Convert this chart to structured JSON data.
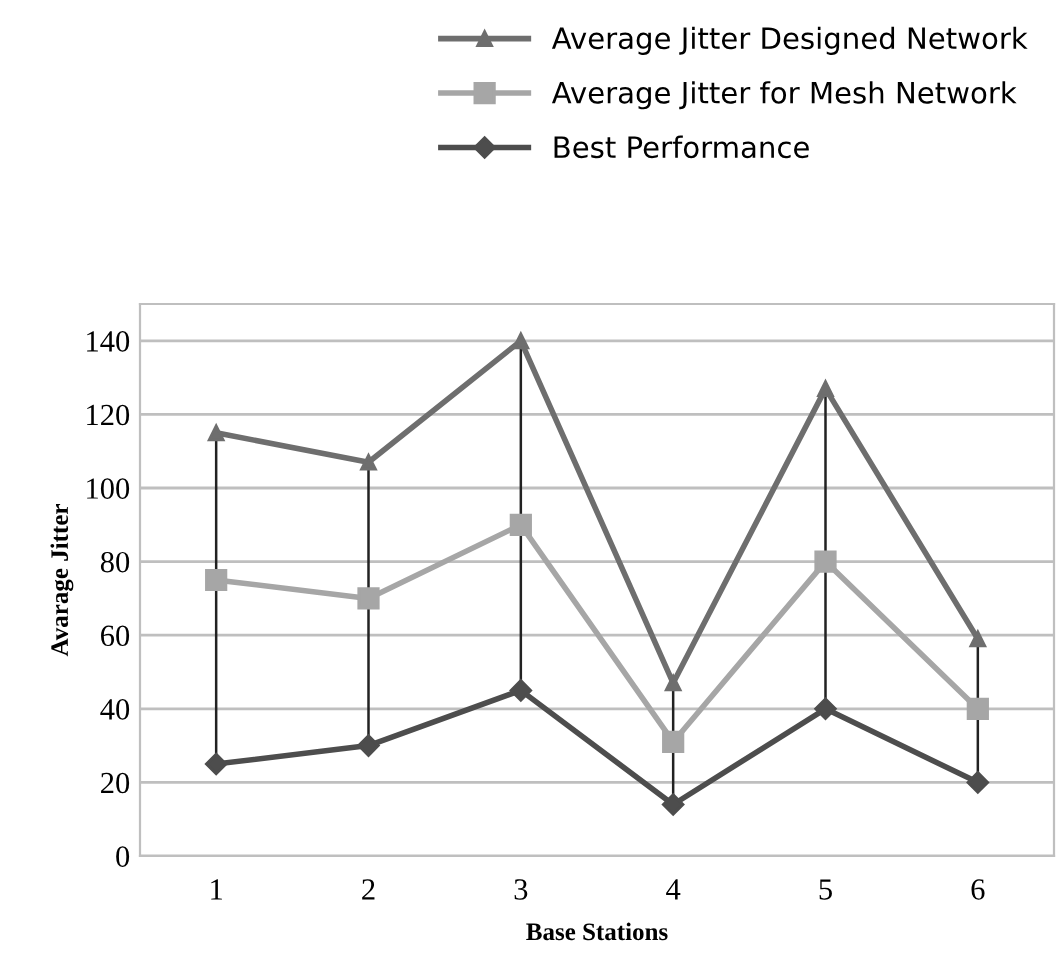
{
  "chart_data": {
    "type": "line",
    "xlabel": "Base Stations",
    "ylabel": "Avarage Jitter",
    "categories": [
      "1",
      "2",
      "3",
      "4",
      "5",
      "6"
    ],
    "series": [
      {
        "name": "Average Jitter Designed Network",
        "color": "#6e6e6e",
        "marker": "triangle",
        "values": [
          115,
          107,
          140,
          47,
          127,
          59
        ]
      },
      {
        "name": "Average Jitter for Mesh Network",
        "color": "#a6a6a6",
        "marker": "square",
        "values": [
          75,
          70,
          90,
          31,
          80,
          40
        ]
      },
      {
        "name": "Best Performance",
        "color": "#4d4d4d",
        "marker": "diamond",
        "values": [
          25,
          30,
          45,
          14,
          40,
          20
        ],
        "errors": [
          [
            25,
            115
          ],
          [
            30,
            107
          ],
          [
            45,
            140
          ],
          [
            14,
            47
          ],
          [
            40,
            127
          ],
          [
            20,
            59
          ]
        ]
      }
    ],
    "ylim": [
      0,
      150
    ],
    "yticks": [
      0,
      20,
      40,
      60,
      80,
      100,
      120,
      140
    ],
    "grid": "y",
    "legend": "top right"
  }
}
